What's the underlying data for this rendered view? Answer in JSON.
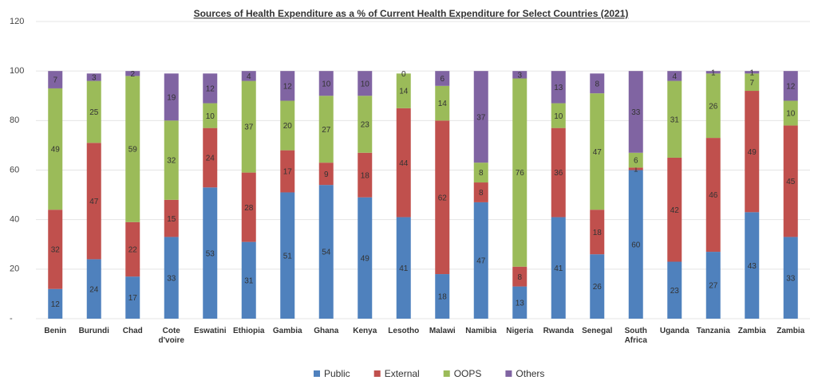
{
  "chart_data": {
    "type": "stacked_bar",
    "title": "Sources of Health Expenditure as a % of Current Health Expenditure for Select Countries (2021)",
    "categories": [
      "Benin",
      "Burundi",
      "Chad",
      "Cote d'voire",
      "Eswatini",
      "Ethiopia",
      "Gambia",
      "Ghana",
      "Kenya",
      "Lesotho",
      "Malawi",
      "Namibia",
      "Nigeria",
      "Rwanda",
      "Senegal",
      "South Africa",
      "Uganda",
      "Tanzania",
      "Zambia",
      "Zambia"
    ],
    "series": [
      {
        "name": "Public",
        "color": "#4f81bd",
        "values": [
          12,
          24,
          17,
          33,
          53,
          31,
          51,
          54,
          49,
          41,
          18,
          47,
          13,
          41,
          26,
          60,
          23,
          27,
          43,
          33
        ]
      },
      {
        "name": "External",
        "color": "#c0504d",
        "values": [
          32,
          47,
          22,
          15,
          24,
          28,
          17,
          9,
          18,
          44,
          62,
          8,
          8,
          36,
          18,
          1,
          42,
          46,
          49,
          45
        ]
      },
      {
        "name": "OOPS",
        "color": "#9bbb59",
        "values": [
          49,
          25,
          59,
          32,
          10,
          37,
          20,
          27,
          23,
          14,
          14,
          8,
          76,
          10,
          47,
          6,
          31,
          26,
          7,
          10
        ]
      },
      {
        "name": "Others",
        "color": "#8064a2",
        "values": [
          7,
          3,
          2,
          19,
          12,
          4,
          12,
          10,
          10,
          0,
          6,
          37,
          3,
          13,
          8,
          33,
          4,
          1,
          1,
          12
        ]
      }
    ],
    "ylim": [
      0,
      120
    ],
    "yticks": [
      {
        "value": 0,
        "label": "-"
      },
      20,
      40,
      60,
      80,
      100,
      120
    ],
    "grid": true
  }
}
